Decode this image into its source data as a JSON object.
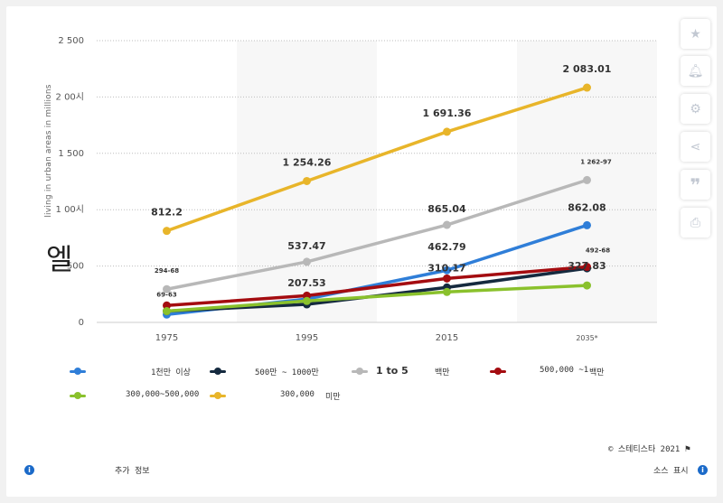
{
  "chart_data": {
    "type": "line",
    "categories": [
      "1975",
      "1995",
      "2015",
      "2035*"
    ],
    "ylabel": "living in urban areas in millions",
    "yticks": [
      "2 500",
      "2 00시",
      "1 500",
      "1 00시",
      "500",
      "0"
    ],
    "ylim": [
      0,
      2500
    ],
    "grid": true,
    "legend_placement": "bottom",
    "series": [
      {
        "name": "1천만 이상",
        "color": "#2f7ed8",
        "values": [
          69.63,
          207.53,
          462.79,
          862.08
        ],
        "labels": [
          "69-63",
          "207.53",
          "462.79",
          "862.08"
        ]
      },
      {
        "name": "500만 ~ 1000만",
        "color": "#152a3f",
        "values": [
          100,
          160,
          310.17,
          480
        ],
        "labels": [
          "",
          "",
          "310.17",
          ""
        ]
      },
      {
        "name": "1 to 5 백만",
        "color": "#b8b8b8",
        "values": [
          294.68,
          537.47,
          865.04,
          1262.97
        ],
        "labels": [
          "294-68",
          "537.47",
          "865.04",
          "1 262-97"
        ]
      },
      {
        "name": "500,000 ~1 백만",
        "color": "#a40c10",
        "values": [
          150,
          237,
          390,
          492.68
        ],
        "labels": [
          "",
          "",
          "",
          "492-68"
        ]
      },
      {
        "name": "300,000~500,000",
        "color": "#8ac12c",
        "values": [
          100,
          190,
          270,
          327.83
        ],
        "labels": [
          "",
          "",
          "",
          "327.83"
        ]
      },
      {
        "name": "300,000 미만",
        "color": "#e8b52a",
        "values": [
          812.2,
          1254.26,
          1691.36,
          2083.01
        ],
        "labels": [
          "812.2",
          "1 254.26",
          "1 691.36",
          "2 083.01"
        ]
      }
    ]
  },
  "ui": {
    "big_glyph": "엘",
    "legend": [
      {
        "label": "1천만 이상",
        "color": "#2f7ed8"
      },
      {
        "label": "500만 ~ 1000만",
        "color": "#152a3f"
      },
      {
        "label": "1 to 5",
        "label2": "백만",
        "color": "#b8b8b8"
      },
      {
        "label": "500,000 ~1",
        "label2": "백만",
        "color": "#a40c10"
      },
      {
        "label": "300,000~500,000",
        "color": "#8ac12c"
      },
      {
        "label": "300,000",
        "label2": "미만",
        "color": "#e8b52a"
      }
    ],
    "credit": "© 스테티스타 2021",
    "more_info": "추가 정보",
    "show_source": "소스 표시",
    "side_icons": [
      "star-icon",
      "bell-icon",
      "gear-icon",
      "share-icon",
      "quote-icon",
      "print-icon"
    ]
  }
}
